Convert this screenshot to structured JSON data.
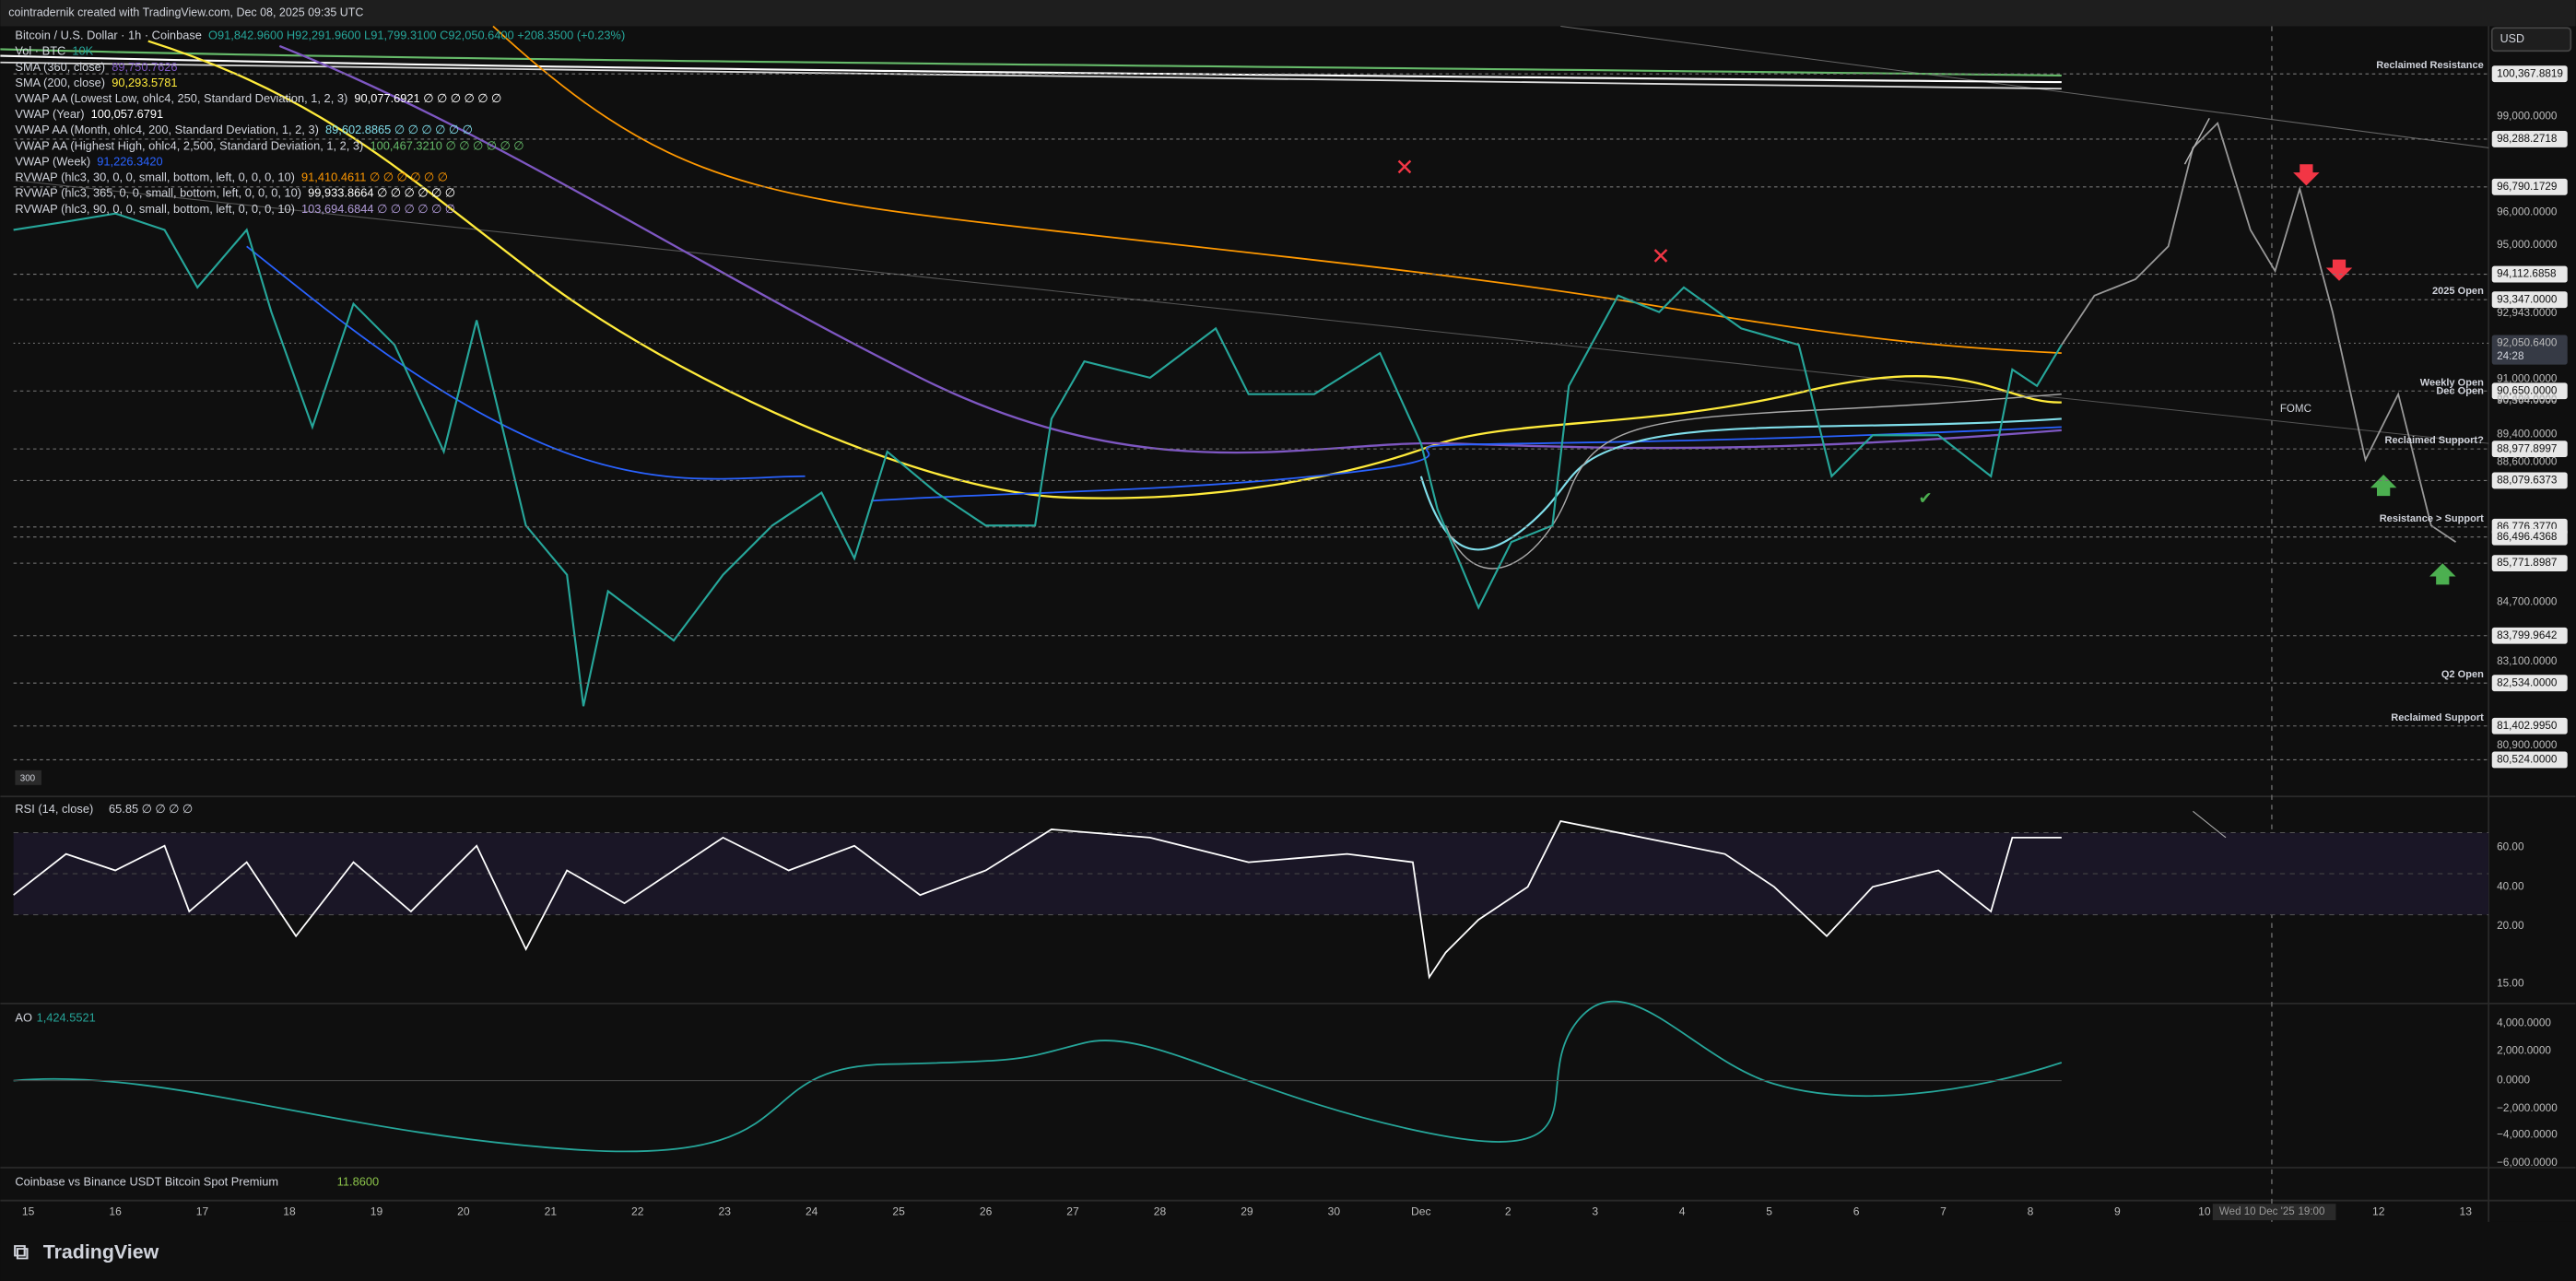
{
  "header": {
    "credit": "cointradernik created with TradingView.com, Dec 08, 2025 09:35 UTC",
    "currency": "USD"
  },
  "legend": [
    {
      "name": "Bitcoin / U.S. Dollar · 1h · Coinbase",
      "value": "O91,842.9600 H92,291.9600 L91,799.3100 C92,050.6400 +208.3500 (+0.23%)",
      "color": "#26a69a"
    },
    {
      "name": "Vol · BTC",
      "value": "10K",
      "color": "#26a69a"
    },
    {
      "name": "SMA (360, close)",
      "value": "89,750.7626",
      "color": "#7e57c2"
    },
    {
      "name": "SMA (200, close)",
      "value": "90,293.5781",
      "color": "#ffeb3b"
    },
    {
      "name": "VWAP AA (Lowest Low, ohlc4, 250, Standard Deviation, 1, 2, 3)",
      "value": "90,077.6921 ∅ ∅ ∅ ∅ ∅ ∅",
      "color": "#ffffff"
    },
    {
      "name": "VWAP (Year)",
      "value": "100,057.6791",
      "color": "#ffffff"
    },
    {
      "name": "VWAP AA (Month, ohlc4, 200, Standard Deviation, 1, 2, 3)",
      "value": "89,602.8865 ∅ ∅ ∅ ∅ ∅ ∅",
      "color": "#80deea"
    },
    {
      "name": "VWAP AA (Highest High, ohlc4, 2,500, Standard Deviation, 1, 2, 3)",
      "value": "100,467.3210 ∅ ∅ ∅ ∅ ∅ ∅",
      "color": "#66bb6a"
    },
    {
      "name": "VWAP (Week)",
      "value": "91,226.3420",
      "color": "#2962ff"
    },
    {
      "name": "RVWAP (hlc3, 30, 0, 0, small, bottom, left, 0, 0, 0, 10)",
      "value": "91,410.4611 ∅ ∅ ∅ ∅ ∅ ∅",
      "color": "#ff9800"
    },
    {
      "name": "RVWAP (hlc3, 365, 0, 0, small, bottom, left, 0, 0, 0, 10)",
      "value": "99,933.8664 ∅ ∅ ∅ ∅ ∅ ∅",
      "color": "#ffffff"
    },
    {
      "name": "RVWAP (hlc3, 90, 0, 0, small, bottom, left, 0, 0, 0, 10)",
      "value": "103,694.6844 ∅ ∅ ∅ ∅ ∅ ∅",
      "color": "#b39ddb"
    }
  ],
  "price_axis": [
    {
      "label": "100,367.8819",
      "box": true,
      "note": "Reclaimed Resistance"
    },
    {
      "label": "99,000.0000"
    },
    {
      "label": "98,288.2718",
      "box": true
    },
    {
      "label": "96,790.1729",
      "box": true
    },
    {
      "label": "96,000.0000"
    },
    {
      "label": "95,000.0000"
    },
    {
      "label": "94,112.6858",
      "box": true
    },
    {
      "label": "93,347.0000",
      "box": true,
      "note": "2025 Open"
    },
    {
      "label": "92,943.0000"
    },
    {
      "label": "92,050.6400",
      "current": true
    },
    {
      "label": "91,000.0000"
    },
    {
      "label": "90,650.0000",
      "box": true,
      "note": "Weekly Open"
    },
    {
      "label": "90,400.0000",
      "note": "Dec Open"
    },
    {
      "label": "90,364.0000"
    },
    {
      "label": "89,400.0000"
    },
    {
      "label": "88,977.8997",
      "box": true,
      "note": "Reclaimed Support?"
    },
    {
      "label": "88,600.0000"
    },
    {
      "label": "88,079.6373",
      "box": true
    },
    {
      "label": "86,776.3770",
      "box": true,
      "note": "Resistance > Support"
    },
    {
      "label": "86,496.4368",
      "box": true
    },
    {
      "label": "85,771.8987",
      "box": true
    },
    {
      "label": "84,700.0000"
    },
    {
      "label": "83,799.9642",
      "box": true
    },
    {
      "label": "83,100.0000"
    },
    {
      "label": "82,534.0000",
      "box": true,
      "note": "Q2 Open"
    },
    {
      "label": "81,402.9950",
      "box": true,
      "note": "Reclaimed Support"
    },
    {
      "label": "80,900.0000"
    },
    {
      "label": "80,524.0000",
      "box": true
    }
  ],
  "countdown": "24:28",
  "annotation": "FOMC",
  "rsi": {
    "name": "RSI (14, close)",
    "value": "65.85 ∅ ∅ ∅ ∅",
    "axis": [
      "60.00",
      "40.00",
      "20.00",
      "15.00"
    ]
  },
  "ao": {
    "name": "AO",
    "value": "1,424.5521",
    "axis": [
      "4,000.0000",
      "2,000.0000",
      "0.0000",
      "−2,000.0000",
      "−4,000.0000",
      "−6,000.0000"
    ]
  },
  "premium": {
    "name": "Coinbase vs Binance USDT Bitcoin Spot Premium",
    "value": "11.8600"
  },
  "time_axis": [
    "15",
    "16",
    "17",
    "18",
    "19",
    "20",
    "21",
    "22",
    "23",
    "24",
    "25",
    "26",
    "27",
    "28",
    "29",
    "30",
    "Dec",
    "2",
    "3",
    "4",
    "5",
    "6",
    "7",
    "8",
    "9",
    "10",
    "12",
    "13"
  ],
  "crosshair_time": "Wed 10 Dec '25",
  "crosshair_clock": "19:00",
  "volume_badge": "300",
  "brand": "TradingView"
}
